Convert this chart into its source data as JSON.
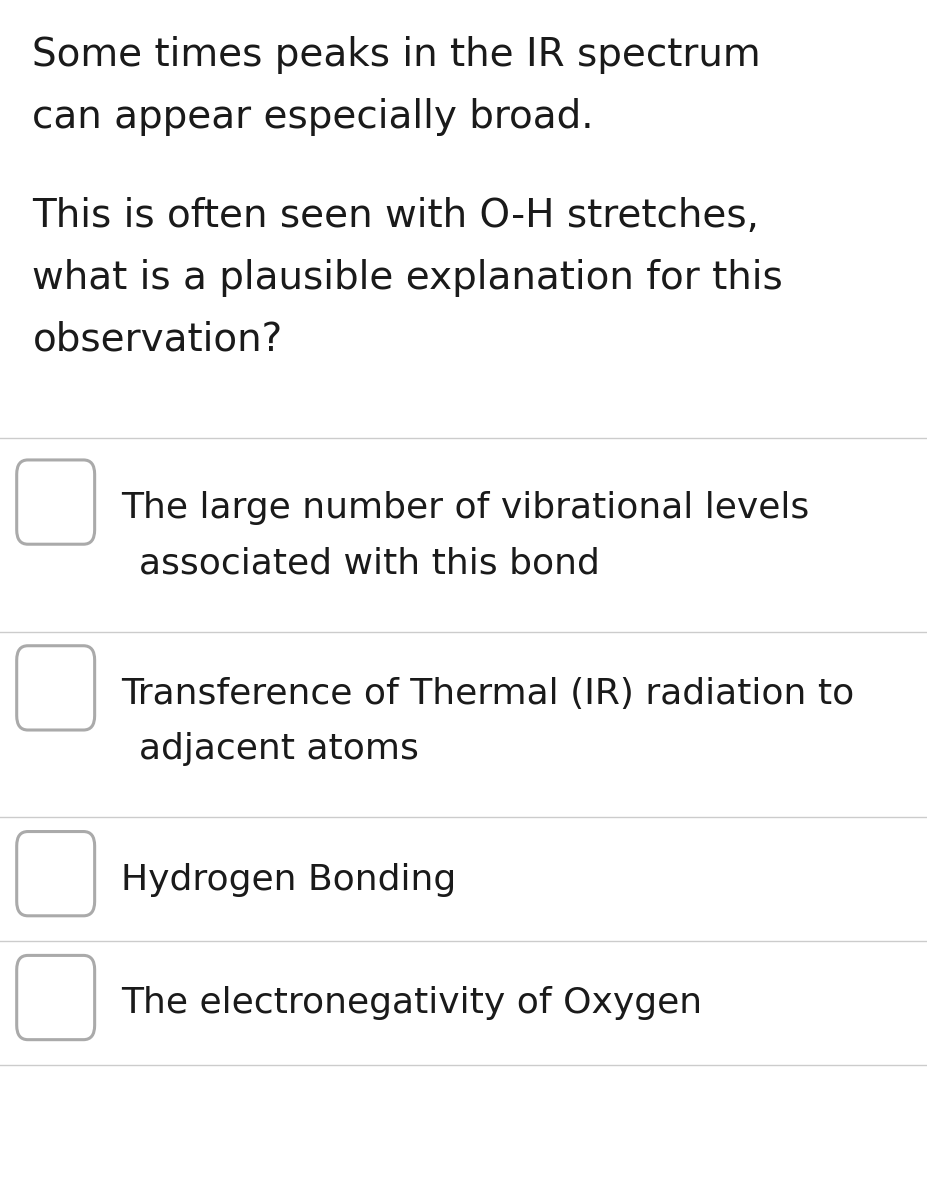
{
  "background_color": "#ffffff",
  "text_color": "#1a1a1a",
  "question_lines": [
    "Some times peaks in the IR spectrum",
    "can appear especially broad.",
    "",
    "This is often seen with O-H stretches,",
    "what is a plausible explanation for this",
    "observation?"
  ],
  "options": [
    [
      "The large number of vibrational levels",
      "associated with this bond"
    ],
    [
      "Transference of Thermal (IR) radiation to",
      "adjacent atoms"
    ],
    [
      "Hydrogen Bonding"
    ],
    [
      "The electronegativity of Oxygen"
    ]
  ],
  "divider_color": "#cccccc",
  "circle_color": "#aaaaaa",
  "font_family": "DejaVu Sans",
  "question_fontsize": 28,
  "option_fontsize": 26,
  "fig_width": 9.28,
  "fig_height": 11.91,
  "dpi": 100
}
